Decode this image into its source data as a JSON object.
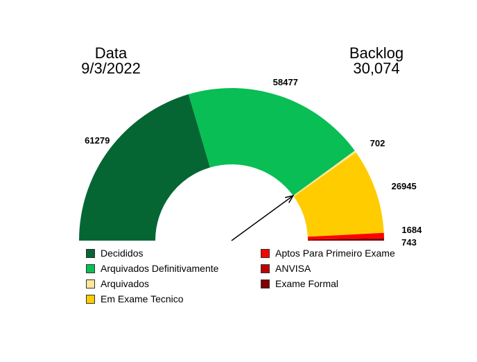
{
  "header": {
    "date_label": "Data",
    "date_value": "9/3/2022",
    "backlog_label": "Backlog",
    "backlog_value": "30,074"
  },
  "chart_data": {
    "type": "gauge-half-donut",
    "categories": [
      "Decididos",
      "Arquivados Definitivamente",
      "Arquivados",
      "Em Exame Tecnico",
      "Aptos Para Primeiro Exame",
      "ANVISA",
      "Exame Formal"
    ],
    "values": [
      61279,
      58477,
      702,
      26945,
      1684,
      0,
      743
    ],
    "data_labels": [
      "61279",
      "58477",
      "702",
      "26945",
      "1684",
      "",
      "743"
    ],
    "colors": [
      "#066633",
      "#08BE55",
      "#FFE699",
      "#FFCC00",
      "#FF0000",
      "#C00000",
      "#800000"
    ],
    "needle_value": 119756,
    "legend_placement": "bottom"
  }
}
